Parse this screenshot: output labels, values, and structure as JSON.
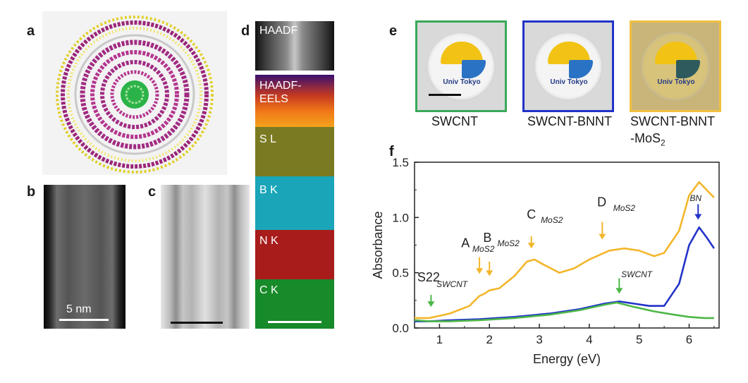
{
  "panel_labels": {
    "a": "a",
    "b": "b",
    "c": "c",
    "d": "d",
    "e": "e",
    "f": "f"
  },
  "panel_b": {
    "scale_label": "5 nm"
  },
  "panel_d": {
    "channels": [
      "HAADF",
      "HAADF-\nEELS",
      "S L",
      "B K",
      "N K",
      "C K"
    ]
  },
  "panel_e": {
    "logo_text": "Univ Tokyo",
    "samples": [
      {
        "caption": "SWCNT",
        "border_color": "#3aa85a"
      },
      {
        "caption": "SWCNT-BNNT",
        "border_color": "#2233c8"
      },
      {
        "caption": "SWCNT-BNNT",
        "caption_line2": "-MoS",
        "caption_sub": "2",
        "border_color": "#f1c040"
      }
    ]
  },
  "chart_data": {
    "type": "line",
    "xlabel": "Energy (eV)",
    "ylabel": "Absorbance",
    "xlim": [
      0.5,
      6.6
    ],
    "ylim": [
      0,
      1.5
    ],
    "xticks": [
      1,
      2,
      3,
      4,
      5,
      6
    ],
    "yticks": [
      0.0,
      0.5,
      1.0,
      1.5
    ],
    "ytick_labels": [
      "0.0",
      "0.5",
      "1.0",
      "1.5"
    ],
    "series": [
      {
        "name": "SWCNT-BNNT-MoS2",
        "color": "#f3b62b",
        "x": [
          0.5,
          0.8,
          1.2,
          1.6,
          1.8,
          1.9,
          2.0,
          2.2,
          2.5,
          2.75,
          2.9,
          3.1,
          3.4,
          3.7,
          4.0,
          4.4,
          4.7,
          5.0,
          5.3,
          5.5,
          5.8,
          6.0,
          6.2,
          6.35,
          6.5
        ],
        "y": [
          0.09,
          0.09,
          0.13,
          0.2,
          0.29,
          0.31,
          0.34,
          0.36,
          0.47,
          0.6,
          0.62,
          0.57,
          0.5,
          0.54,
          0.62,
          0.7,
          0.72,
          0.7,
          0.65,
          0.68,
          0.88,
          1.2,
          1.32,
          1.25,
          1.18
        ]
      },
      {
        "name": "SWCNT-BNNT",
        "color": "#2233c8",
        "x": [
          0.5,
          0.8,
          1.2,
          1.8,
          2.5,
          3.2,
          3.8,
          4.3,
          4.6,
          4.9,
          5.2,
          5.5,
          5.8,
          6.0,
          6.2,
          6.35,
          6.5
        ],
        "y": [
          0.06,
          0.06,
          0.07,
          0.08,
          0.1,
          0.13,
          0.17,
          0.22,
          0.24,
          0.22,
          0.2,
          0.2,
          0.4,
          0.75,
          0.91,
          0.82,
          0.72
        ]
      },
      {
        "name": "SWCNT",
        "color": "#4cb748",
        "x": [
          0.5,
          0.8,
          1.2,
          1.8,
          2.5,
          3.2,
          3.8,
          4.3,
          4.55,
          4.9,
          5.3,
          5.7,
          6.0,
          6.3,
          6.5
        ],
        "y": [
          0.07,
          0.06,
          0.06,
          0.07,
          0.09,
          0.12,
          0.16,
          0.21,
          0.23,
          0.19,
          0.15,
          0.12,
          0.1,
          0.09,
          0.09
        ]
      }
    ],
    "annotations": [
      {
        "main": "S22",
        "sub": "SWCNT",
        "arrow_x": 0.83,
        "arrow_top": 0.3,
        "arrow_bottom": 0.19,
        "color": "#4cb748",
        "main_x": 0.78,
        "main_y": 0.42,
        "sub_x": 1.25,
        "sub_y": 0.37
      },
      {
        "main": "A",
        "sub": "MoS2",
        "arrow_x": 1.8,
        "arrow_top": 0.64,
        "arrow_bottom": 0.49,
        "color": "#f3b62b",
        "main_x": 1.52,
        "main_y": 0.73,
        "sub_x": 1.88,
        "sub_y": 0.69
      },
      {
        "main": "B",
        "sub": "MoS2",
        "arrow_x": 2.0,
        "arrow_top": 0.6,
        "arrow_bottom": 0.47,
        "color": "#f3b62b",
        "main_x": 1.96,
        "main_y": 0.78,
        "sub_x": 2.38,
        "sub_y": 0.74
      },
      {
        "main": "C",
        "sub": "MoS2",
        "arrow_x": 2.84,
        "arrow_top": 0.83,
        "arrow_bottom": 0.72,
        "color": "#f3b62b",
        "main_x": 2.84,
        "main_y": 0.99,
        "sub_x": 3.25,
        "sub_y": 0.95
      },
      {
        "main": "D",
        "sub": "MoS2",
        "arrow_x": 4.26,
        "arrow_top": 0.96,
        "arrow_bottom": 0.8,
        "color": "#f3b62b",
        "main_x": 4.25,
        "main_y": 1.1,
        "sub_x": 4.7,
        "sub_y": 1.06
      },
      {
        "main": "",
        "sub": "SWCNT",
        "arrow_x": 4.6,
        "arrow_top": 0.45,
        "arrow_bottom": 0.31,
        "color": "#4cb748",
        "main_x": 4.6,
        "main_y": 0.45,
        "sub_x": 4.95,
        "sub_y": 0.46
      },
      {
        "main": "",
        "sub": "BN",
        "arrow_x": 6.18,
        "arrow_top": 1.12,
        "arrow_bottom": 0.98,
        "color": "#2233c8",
        "main_x": 6.18,
        "main_y": 1.12,
        "sub_x": 6.13,
        "sub_y": 1.15
      }
    ]
  }
}
